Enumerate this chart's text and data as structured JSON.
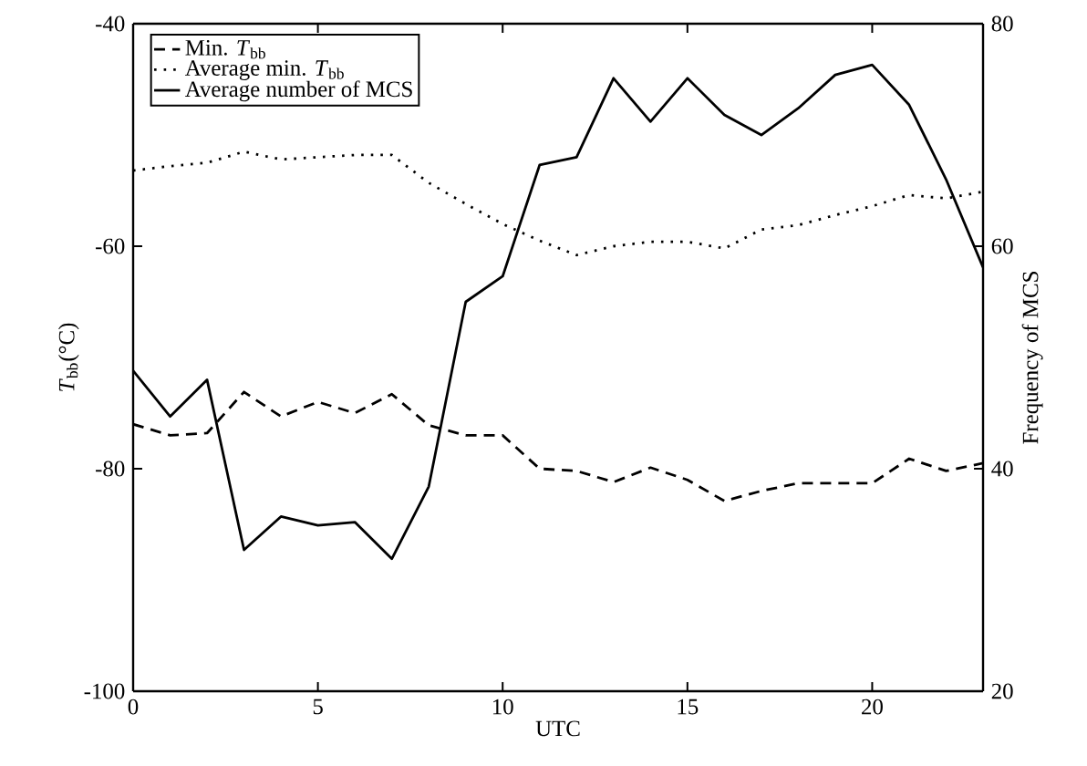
{
  "chart_data": {
    "type": "line",
    "xlabel": "UTC",
    "ylabel": "*T*$_{bb}$(°C)",
    "y2label": "Frequency of MCS",
    "x": [
      0,
      1,
      2,
      3,
      4,
      5,
      6,
      7,
      8,
      9,
      10,
      11,
      12,
      13,
      14,
      15,
      16,
      17,
      18,
      19,
      20,
      21,
      22,
      23
    ],
    "series": [
      {
        "name": "Min. *T*$_{bb}$",
        "color": "#000000",
        "line_style": "dashed",
        "values": [
          -76.0,
          -77.0,
          -76.8,
          -73.1,
          -75.3,
          -74.0,
          -75.0,
          -73.3,
          -76.1,
          -77.0,
          -77.0,
          -80.0,
          -80.2,
          -81.2,
          -79.9,
          -81.0,
          -82.9,
          -82.0,
          -81.3,
          -81.3,
          -81.3,
          -79.1,
          -80.2,
          -79.5
        ]
      },
      {
        "name": "Average min. *T*$_{bb}$",
        "color": "#000000",
        "line_style": "dotted",
        "values": [
          -53.2,
          -52.8,
          -52.5,
          -51.5,
          -52.2,
          -52.0,
          -51.8,
          -51.8,
          -54.3,
          -56.2,
          -58.0,
          -59.5,
          -60.8,
          -60.0,
          -59.6,
          -59.6,
          -60.2,
          -58.5,
          -58.1,
          -57.2,
          -56.4,
          -55.4,
          -55.7,
          -55.1
        ]
      },
      {
        "name": "Average number of MCS",
        "color": "#000000",
        "line_style": "solid",
        "axis": "y2",
        "values": [
          48.8,
          44.7,
          48.0,
          32.7,
          35.7,
          34.9,
          35.2,
          31.9,
          38.4,
          55.0,
          57.3,
          67.3,
          68.0,
          75.1,
          71.2,
          75.1,
          71.8,
          70.0,
          72.4,
          75.4,
          76.3,
          72.7,
          66.0,
          58.1
        ]
      }
    ],
    "xlim": [
      0,
      23
    ],
    "xticks": [
      0,
      5,
      10,
      15,
      20
    ],
    "ylim": [
      -100,
      -40
    ],
    "yticks": [
      -100,
      -80,
      -60,
      -40
    ],
    "y2lim": [
      20,
      80
    ],
    "y2ticks": [
      20,
      40,
      60,
      80
    ],
    "grid": false,
    "legend": "top left"
  }
}
